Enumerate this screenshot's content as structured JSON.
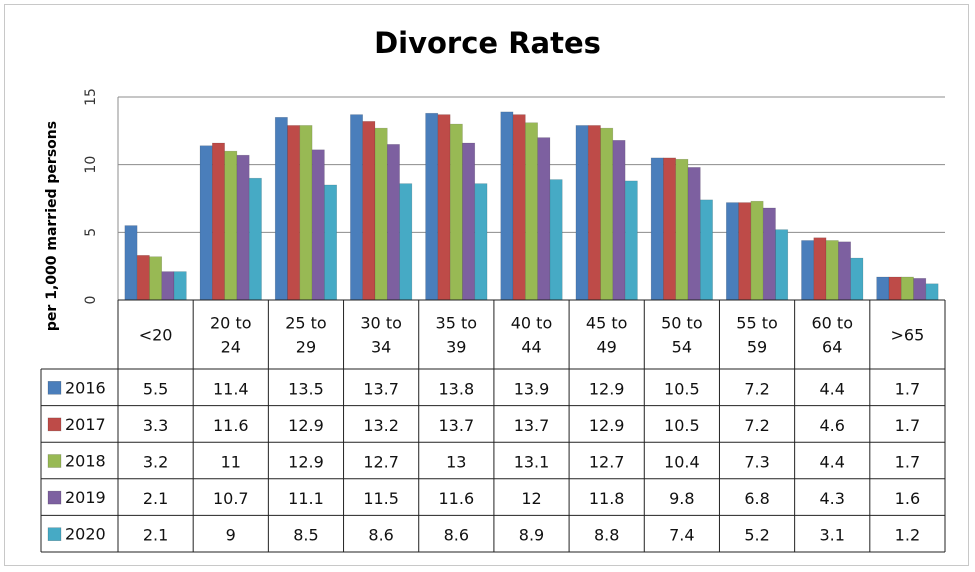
{
  "chart_data": {
    "type": "bar",
    "title": "Divorce Rates",
    "xlabel": "",
    "ylabel": "per 1,000 married persons",
    "ylim": [
      0,
      15
    ],
    "yticks": [
      "0",
      "5",
      "10",
      "15"
    ],
    "grid": true,
    "legend": "data-table-left",
    "categories": [
      [
        "<20"
      ],
      [
        "20 to",
        "24"
      ],
      [
        "25 to",
        "29"
      ],
      [
        "30 to",
        "34"
      ],
      [
        "35 to",
        "39"
      ],
      [
        "40 to",
        "44"
      ],
      [
        "45 to",
        "49"
      ],
      [
        "50 to",
        "54"
      ],
      [
        "55 to",
        "59"
      ],
      [
        "60 to",
        "64"
      ],
      [
        ">65"
      ]
    ],
    "series": [
      {
        "name": "2016",
        "color": "#4a7ebb",
        "values": [
          5.5,
          11.4,
          13.5,
          13.7,
          13.8,
          13.9,
          12.9,
          10.5,
          7.2,
          4.4,
          1.7
        ]
      },
      {
        "name": "2017",
        "color": "#be4b48",
        "values": [
          3.3,
          11.6,
          12.9,
          13.2,
          13.7,
          13.7,
          12.9,
          10.5,
          7.2,
          4.6,
          1.7
        ]
      },
      {
        "name": "2018",
        "color": "#98b954",
        "values": [
          3.2,
          11,
          12.9,
          12.7,
          13,
          13.1,
          12.7,
          10.4,
          7.3,
          4.4,
          1.7
        ]
      },
      {
        "name": "2019",
        "color": "#7d60a0",
        "values": [
          2.1,
          10.7,
          11.1,
          11.5,
          11.6,
          12,
          11.8,
          9.8,
          6.8,
          4.3,
          1.6
        ]
      },
      {
        "name": "2020",
        "color": "#46aac5",
        "values": [
          2.1,
          9,
          8.5,
          8.6,
          8.6,
          8.9,
          8.8,
          7.4,
          5.2,
          3.1,
          1.2
        ]
      }
    ]
  }
}
